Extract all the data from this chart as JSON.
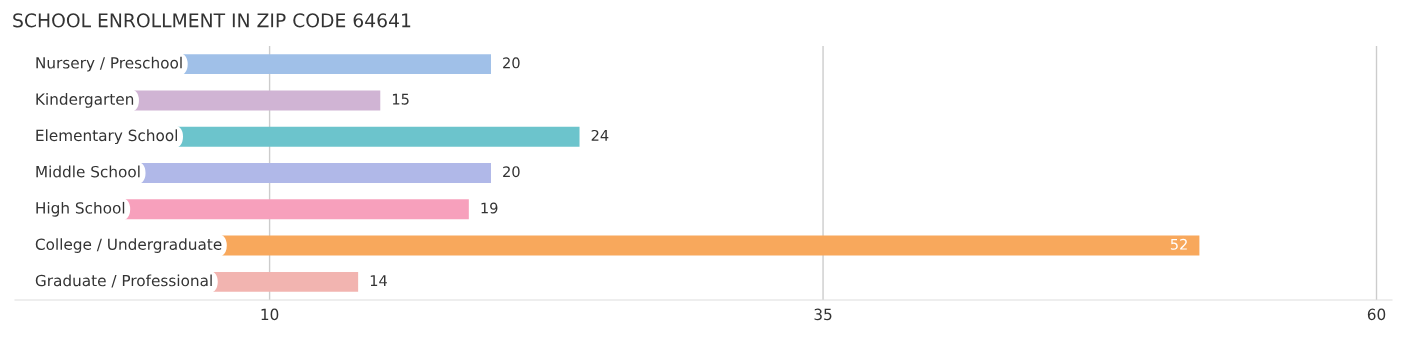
{
  "chart_data": {
    "type": "bar",
    "orientation": "horizontal",
    "title": "SCHOOL ENROLLMENT IN ZIP CODE 64641",
    "categories": [
      "Nursery / Preschool",
      "Kindergarten",
      "Elementary School",
      "Middle School",
      "High School",
      "College / Undergraduate",
      "Graduate / Professional"
    ],
    "values": [
      20,
      15,
      24,
      20,
      19,
      52,
      14
    ],
    "colors": [
      "#a0c0e8",
      "#d0b4d4",
      "#6cc4cc",
      "#b0b8e8",
      "#f7a0bc",
      "#f8a85c",
      "#f2b4b0"
    ],
    "xlim": [
      -1.5,
      60.7
    ],
    "xticks": [
      10,
      35,
      60
    ],
    "grid": "x",
    "data_labels": true,
    "legend": false
  }
}
